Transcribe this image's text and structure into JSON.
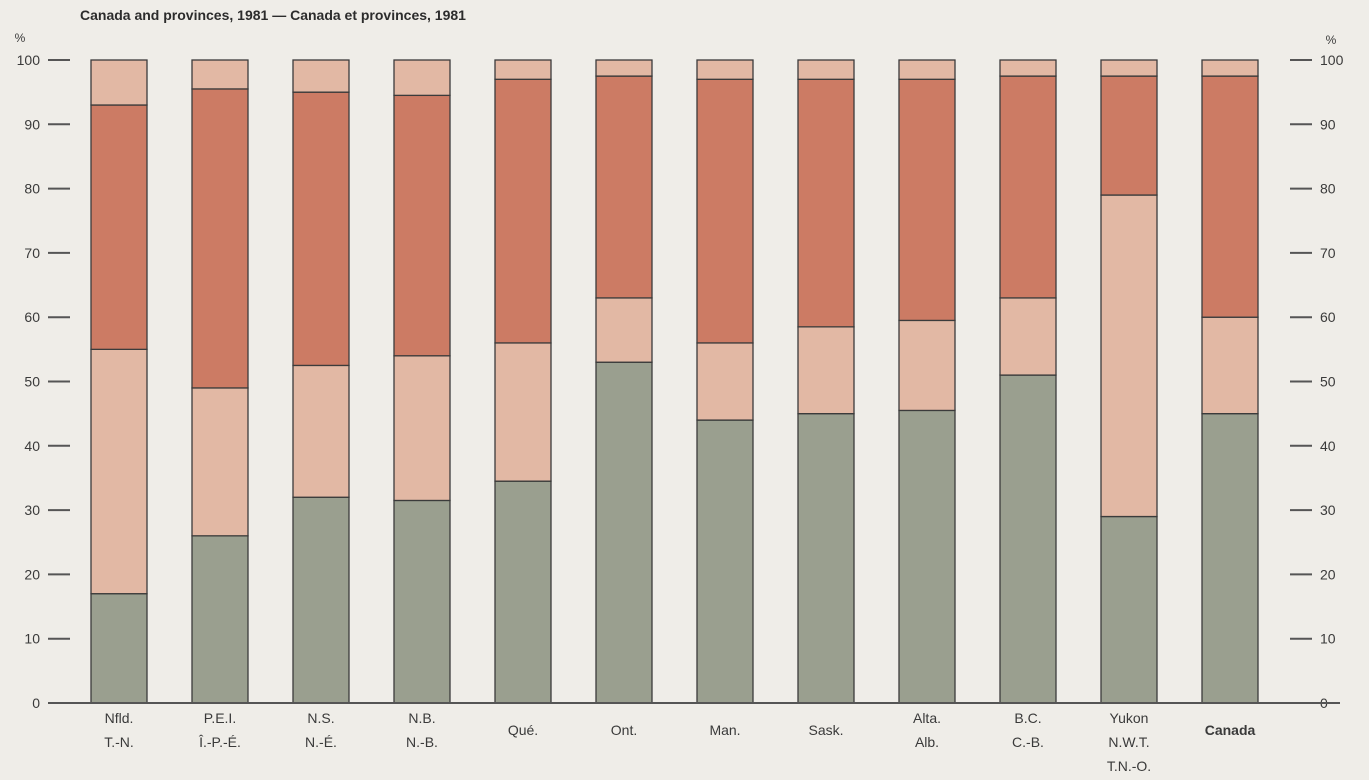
{
  "title": "Canada and provinces, 1981 — Canada et provinces, 1981",
  "chart_data": {
    "type": "bar",
    "stacked": true,
    "y_unit": "%",
    "ylim": [
      0,
      100
    ],
    "y_ticks": [
      0,
      10,
      20,
      30,
      40,
      50,
      60,
      70,
      80,
      90,
      100
    ],
    "categories": [
      {
        "lines": [
          "Nfld.",
          "T.-N."
        ],
        "bold": false
      },
      {
        "lines": [
          "P.E.I.",
          "Î.-P.-É."
        ],
        "bold": false
      },
      {
        "lines": [
          "N.S.",
          "N.-É."
        ],
        "bold": false
      },
      {
        "lines": [
          "N.B.",
          "N.-B."
        ],
        "bold": false
      },
      {
        "lines": [
          "Qué."
        ],
        "bold": false
      },
      {
        "lines": [
          "Ont."
        ],
        "bold": false
      },
      {
        "lines": [
          "Man."
        ],
        "bold": false
      },
      {
        "lines": [
          "Sask."
        ],
        "bold": false
      },
      {
        "lines": [
          "Alta.",
          "Alb."
        ],
        "bold": false
      },
      {
        "lines": [
          "B.C.",
          "C.-B."
        ],
        "bold": false
      },
      {
        "lines": [
          "Yukon",
          "N.W.T.",
          "T.N.-O."
        ],
        "bold": false
      },
      {
        "lines": [
          "Canada"
        ],
        "bold": true
      }
    ],
    "series": [
      {
        "color": "#9a9f8f",
        "values": [
          17,
          26,
          32,
          31.5,
          34.5,
          53,
          44,
          45,
          45.5,
          51,
          29,
          45
        ]
      },
      {
        "color": "#e2b8a4",
        "values": [
          38,
          23,
          20.5,
          22.5,
          21.5,
          10,
          12,
          13.5,
          14,
          12,
          50,
          15
        ]
      },
      {
        "color": "#cc7b64",
        "values": [
          38,
          46.5,
          42.5,
          40.5,
          41,
          34.5,
          41,
          38.5,
          37.5,
          34.5,
          18.5,
          37.5
        ]
      },
      {
        "color": "#e2b8a4",
        "values": [
          7,
          4.5,
          5,
          5.5,
          3,
          2.5,
          3,
          3,
          3,
          2.5,
          2.5,
          2.5
        ]
      }
    ],
    "legend": null
  }
}
